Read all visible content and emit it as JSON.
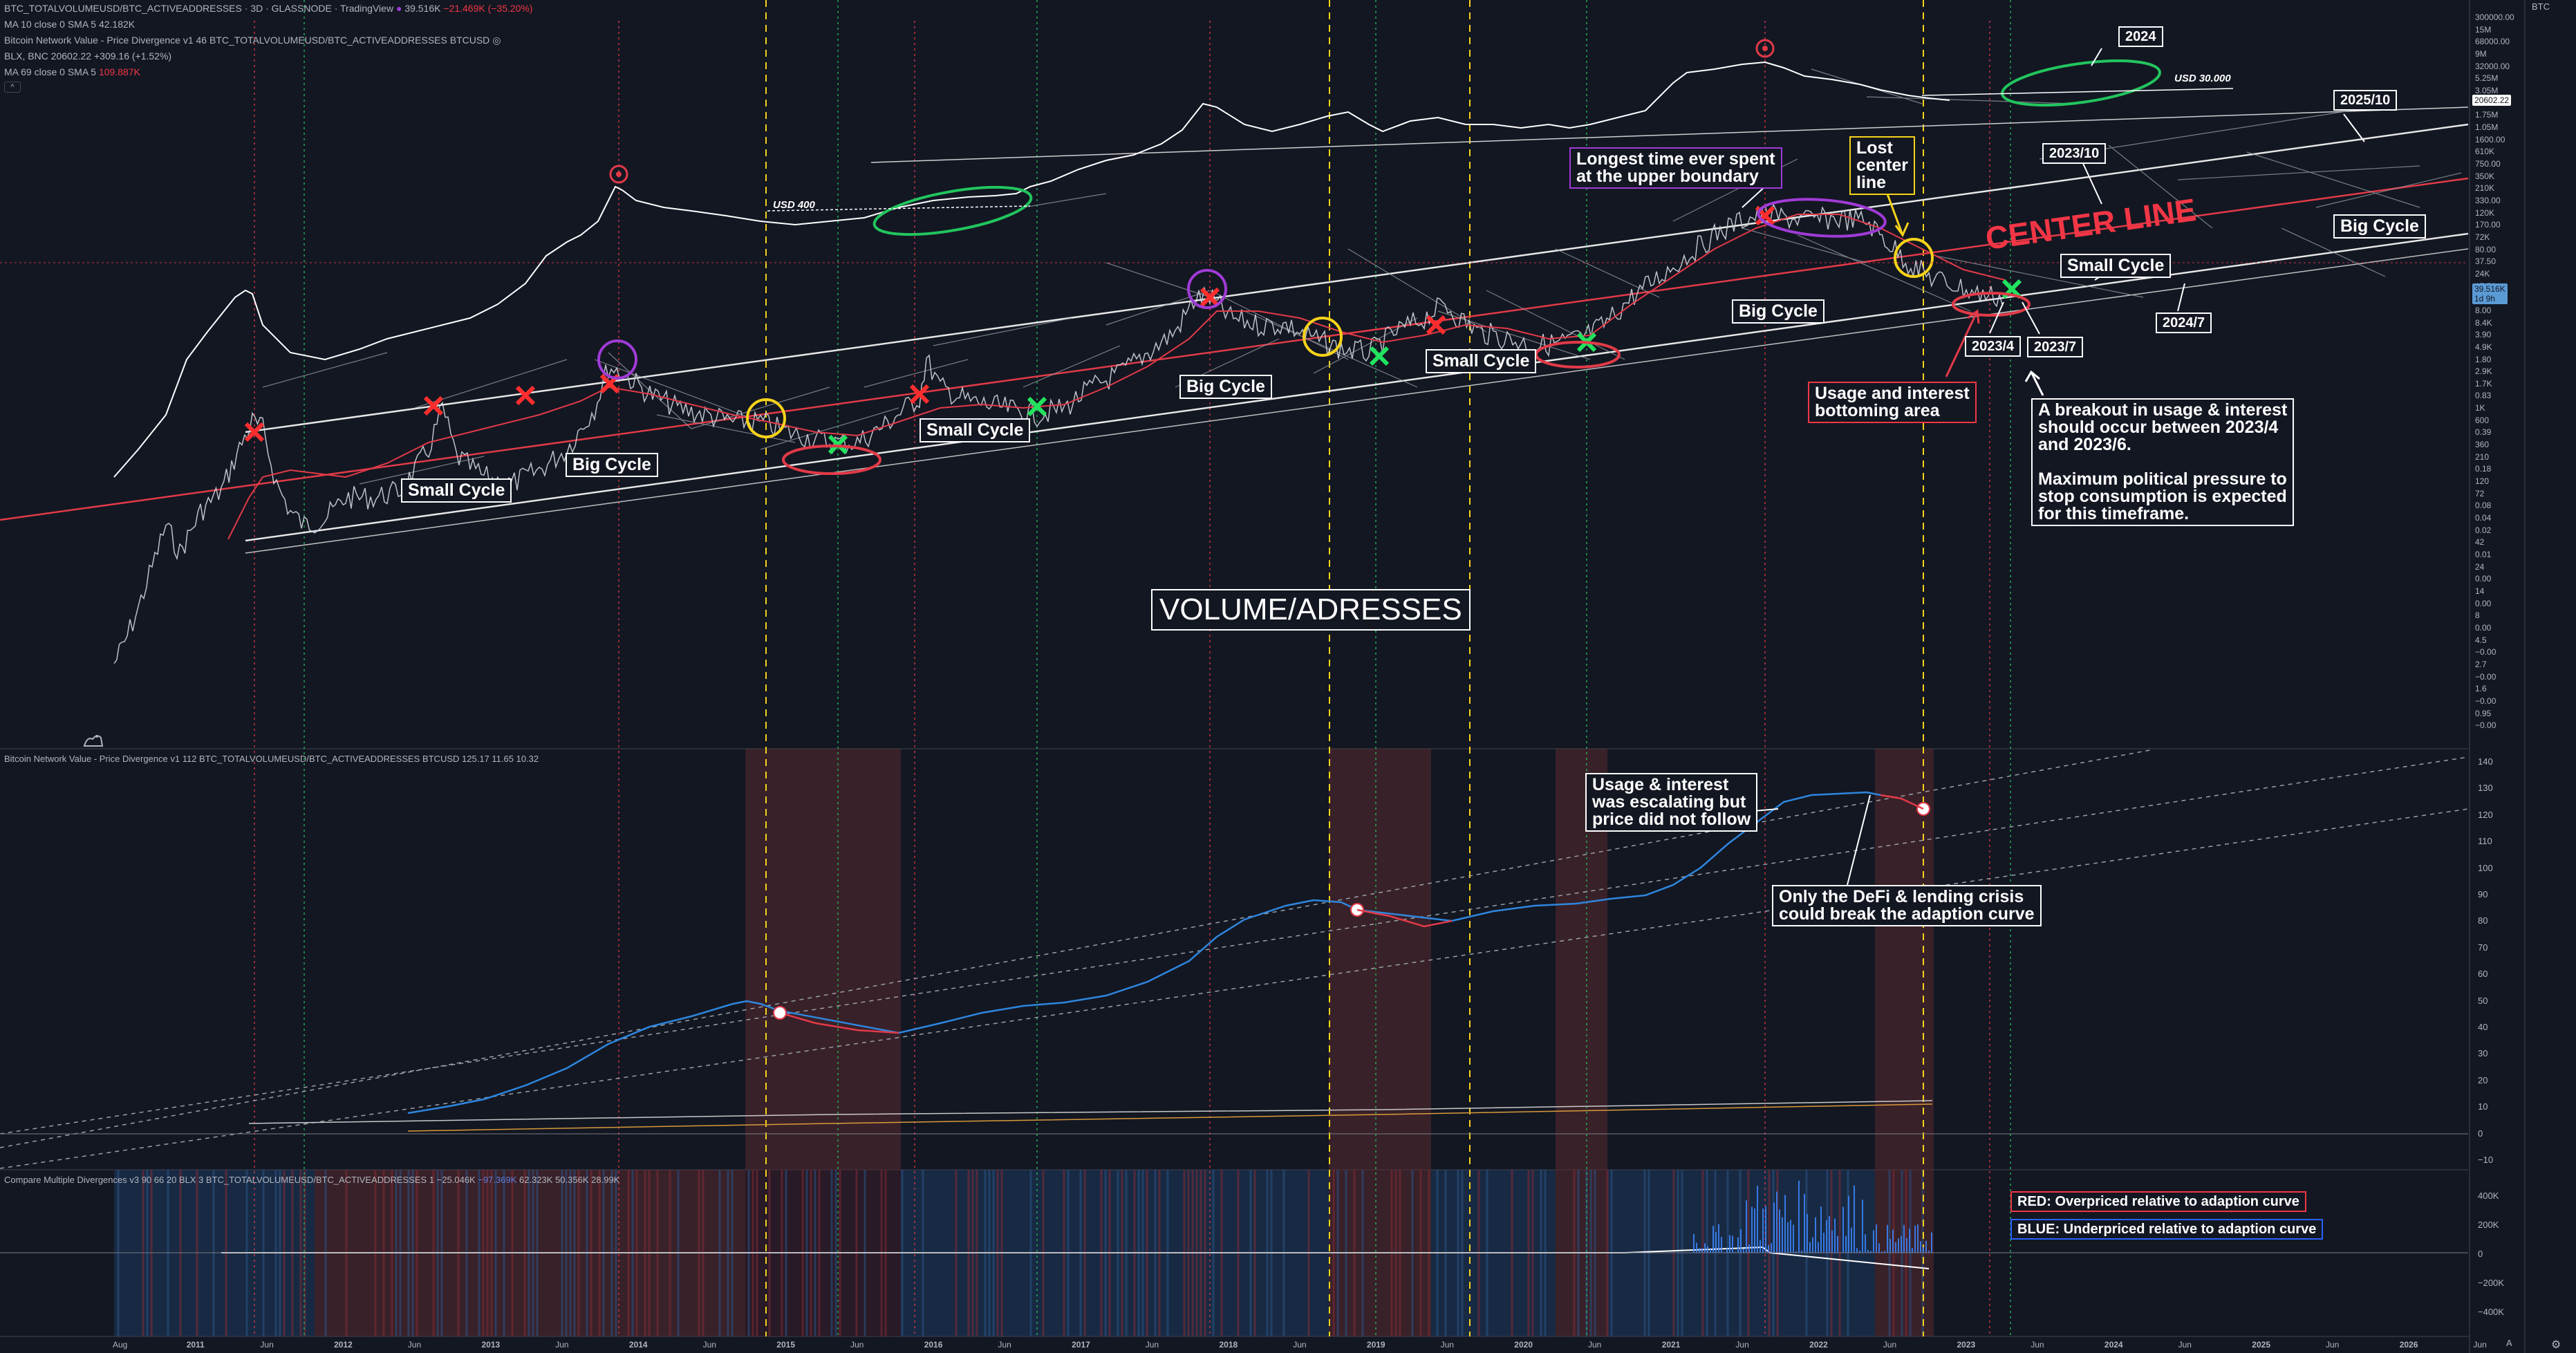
{
  "header": {
    "symbol": "BTC_TOTALVOLUMEUSD/BTC_ACTIVEADDRESSES",
    "interval": "3D",
    "source": "GLASSNODE",
    "platform": "TradingView",
    "last_value": "39.516K",
    "change": "−21.469K (−35.20%)"
  },
  "legends": {
    "ma10": "MA 10 close 0 SMA 5",
    "ma10_value": "42.182K",
    "nvpd_faded": "Bitcoin Network Value - Price Divergence v1 46 BTC_TOTALVOLUMEUSD/BTC_ACTIVEADDRESSES BTCUSD",
    "blx": "BLX, BNC",
    "blx_value": "20602.22",
    "blx_change": "+309.16 (+1.52%)",
    "ma69": "MA 69 close 0 SMA 5",
    "ma69_value": "109.887K",
    "collapse": "^"
  },
  "pane2_legend": {
    "name": "Bitcoin Network Value - Price Divergence v1 112 BTC_TOTALVOLUMEUSD/BTC_ACTIVEADDRESSES BTCUSD",
    "v1": "125.17",
    "v2": "11.65",
    "v3": "10.32"
  },
  "pane3_legend": {
    "name": "Compare Multiple Divergences v3 90 66 20 BLX 3 BTC_TOTALVOLUMEUSD/BTC_ACTIVEADDRESSES 1",
    "v1": "−25.046K",
    "v2": "−97.369K",
    "v3": "62.323K",
    "v4": "50.356K",
    "v5": "28.99K"
  },
  "annotations": {
    "small_cycle": "Small Cycle",
    "big_cycle": "Big Cycle",
    "volume_addresses": "VOLUME/ADRESSES",
    "longest_time": "Longest time ever spent\nat the upper boundary",
    "lost_center": "Lost\ncenter\nline",
    "center_line": "CENTER LINE",
    "usage_bottoming": "Usage and interest\nbottoming area",
    "breakout": "A breakout in usage & interest\nshould occur between 2023/4\nand 2023/6.\n\nMaximum political pressure to\nstop consumption is expected\nfor this timeframe.",
    "d2023_4": "2023/4",
    "d2023_7": "2023/7",
    "d2023_10": "2023/10",
    "d2024": "2024",
    "d2024_7": "2024/7",
    "d2025_10": "2025/10",
    "usd_400": "USD 400",
    "usd_30000": "USD 30.000",
    "usage_escalating": "Usage & interest\nwas escalating but\nprice did not follow",
    "defi_crisis": "Only the DeFi & lending crisis\ncould break the adaption curve",
    "red_legend": "RED: Overpriced relative to adaption curve",
    "blue_legend": "BLUE: Underpriced relative to adaption curve"
  },
  "price_axis": {
    "currency": "BTC",
    "labels_top": [
      "300000.00",
      "15M",
      "68000.00",
      "9M",
      "32000.00",
      "5.25M",
      "3.05M",
      "7000.00",
      "1.75M",
      "1.05M",
      "1600.00",
      "610K",
      "750.00",
      "350K",
      "210K",
      "330.00",
      "120K",
      "170.00",
      "72K",
      "80.00",
      "37.50",
      "24K",
      "17.50",
      "14K",
      "8.00",
      "8.4K",
      "3.90",
      "4.9K",
      "1.80",
      "2.9K",
      "1.7K",
      "0.83",
      "1K",
      "600",
      "0.39",
      "360",
      "210",
      "0.18",
      "120",
      "72",
      "0.08",
      "0.04",
      "0.02",
      "42",
      "0.01",
      "24",
      "0.00",
      "14",
      "0.00",
      "8",
      "0.00",
      "4.5",
      "−0.00",
      "2.7",
      "−0.00",
      "1.6",
      "−0.00",
      "0.95",
      "−0.00"
    ],
    "last_price_tag": "20602.22",
    "current_tag": "39.516K",
    "current_tag2": "1d 9h",
    "labels_pane2": [
      "140",
      "130",
      "120",
      "110",
      "100",
      "90",
      "80",
      "70",
      "60",
      "50",
      "40",
      "30",
      "20",
      "10",
      "0",
      "−10"
    ],
    "labels_pane3": [
      "400K",
      "200K",
      "0",
      "−200K",
      "−400K"
    ]
  },
  "time_axis": [
    "Aug",
    "2011",
    "Jun",
    "2012",
    "Jun",
    "2013",
    "Jun",
    "2014",
    "Jun",
    "2015",
    "Jun",
    "2016",
    "Jun",
    "2017",
    "Jun",
    "2018",
    "Jun",
    "2019",
    "Jun",
    "2020",
    "Jun",
    "2021",
    "Jun",
    "2022",
    "Jun",
    "2023",
    "Jun",
    "2024",
    "Jun",
    "2025",
    "Jun",
    "2026",
    "Jun"
  ],
  "colors": {
    "background": "#131722",
    "red": "#f23645",
    "green": "#22c55e",
    "yellow": "#f6d31a",
    "purple": "#a03bd6",
    "blue_line": "#2e86de",
    "white": "#ffffff"
  },
  "chart_data": [
    {
      "type": "line",
      "title": "",
      "xlabel": "",
      "ylabel": "",
      "scale": "log",
      "x_range": [
        "2010-08",
        "2026-06"
      ],
      "series": [
        {
          "x": [
            "2010-10",
            "2011-06",
            "2011-11",
            "2012-06",
            "2013-04",
            "2013-12",
            "2014-06",
            "2015-01",
            "2015-11",
            "2016-06",
            "2017-01",
            "2017-12",
            "2018-06",
            "2019-01",
            "2019-06",
            "2020-03",
            "2020-12",
            "2021-04",
            "2021-07",
            "2021-11",
            "2022-06",
            "2022-11"
          ],
          "values": [
            3,
            120,
            40,
            80,
            250,
            600,
            320,
            170,
            900,
            320,
            650,
            4000,
            1500,
            2000,
            8000,
            4000,
            13000,
            52000,
            22000,
            64000,
            20000,
            39516
          ]
        }
      ]
    },
    {
      "type": "line",
      "title": "",
      "series": [
        {
          "x": [
            "2011-11",
            "2013-06",
            "2014-05",
            "2014-12",
            "2015-08",
            "2016-06",
            "2017-06",
            "2018-01",
            "2018-11",
            "2019-07",
            "2020-06",
            "2021-02",
            "2021-06",
            "2022-01",
            "2022-07"
          ],
          "values": [
            10,
            25,
            45,
            48,
            40,
            45,
            58,
            80,
            90,
            72,
            85,
            95,
            122,
            130,
            125.17
          ]
        }
      ]
    },
    {
      "type": "area",
      "title": "",
      "ylim": [
        -400000,
        400000
      ],
      "series": [
        {
          "x": [
            "2021-06",
            "2022-02",
            "2022-08"
          ],
          "values": [
            100000,
            320000,
            -150000
          ]
        }
      ]
    }
  ]
}
